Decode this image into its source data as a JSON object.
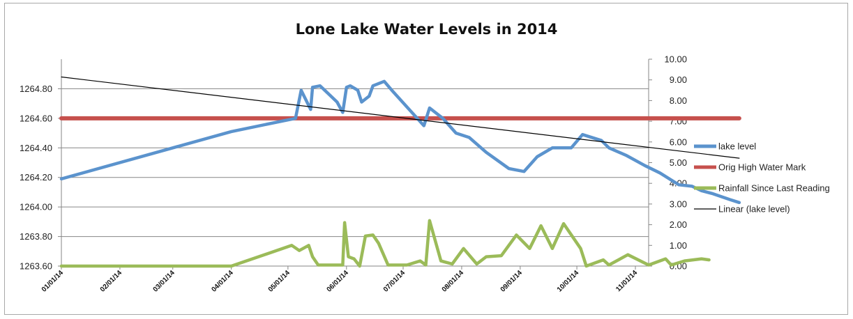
{
  "chart_data": {
    "type": "line",
    "title": "Lone Lake Water Levels in 2014",
    "x_tick_labels": [
      "01/01/14",
      "02/01/14",
      "03/01/14",
      "04/01/14",
      "05/01/14",
      "06/01/14",
      "07/01/14",
      "08/01/14",
      "09/01/14",
      "10/01/14",
      "11/01/14"
    ],
    "y_left": {
      "range": [
        1263.6,
        1265.0
      ],
      "ticks": [
        "1263.60",
        "1263.80",
        "1264.00",
        "1264.20",
        "1264.40",
        "1264.60",
        "1264.80"
      ]
    },
    "y_right": {
      "range": [
        0,
        10
      ],
      "ticks": [
        "0.00",
        "1.00",
        "2.00",
        "3.00",
        "4.00",
        "5.00",
        "6.00",
        "7.00",
        "8.00",
        "9.00",
        "10.00"
      ]
    },
    "grid": "horizontal",
    "legend_position": "right",
    "colors": {
      "lake": "#5b93cd",
      "highwater": "#c6504d",
      "rain": "#9bbb59",
      "trend": "#000000",
      "grid": "#868686"
    },
    "series": [
      {
        "name": "lake level",
        "axis": "left",
        "points": [
          [
            "2014-01-01",
            1264.19
          ],
          [
            "2014-03-01",
            1264.4
          ],
          [
            "2014-04-01",
            1264.51
          ],
          [
            "2014-05-05",
            1264.6
          ],
          [
            "2014-05-08",
            1264.79
          ],
          [
            "2014-05-13",
            1264.66
          ],
          [
            "2014-05-14",
            1264.81
          ],
          [
            "2014-05-18",
            1264.82
          ],
          [
            "2014-05-27",
            1264.71
          ],
          [
            "2014-05-30",
            1264.64
          ],
          [
            "2014-06-01",
            1264.81
          ],
          [
            "2014-06-03",
            1264.82
          ],
          [
            "2014-06-07",
            1264.79
          ],
          [
            "2014-06-09",
            1264.71
          ],
          [
            "2014-06-13",
            1264.75
          ],
          [
            "2014-06-15",
            1264.82
          ],
          [
            "2014-06-21",
            1264.85
          ],
          [
            "2014-06-25",
            1264.79
          ],
          [
            "2014-07-12",
            1264.55
          ],
          [
            "2014-07-15",
            1264.67
          ],
          [
            "2014-07-22",
            1264.6
          ],
          [
            "2014-07-29",
            1264.5
          ],
          [
            "2014-08-05",
            1264.47
          ],
          [
            "2014-08-14",
            1264.37
          ],
          [
            "2014-08-26",
            1264.26
          ],
          [
            "2014-09-03",
            1264.24
          ],
          [
            "2014-09-10",
            1264.34
          ],
          [
            "2014-09-18",
            1264.4
          ],
          [
            "2014-09-28",
            1264.4
          ],
          [
            "2014-10-04",
            1264.49
          ],
          [
            "2014-10-14",
            1264.45
          ],
          [
            "2014-10-18",
            1264.4
          ],
          [
            "2014-10-27",
            1264.35
          ],
          [
            "2014-11-06",
            1264.28
          ],
          [
            "2014-11-14",
            1264.23
          ],
          [
            "2014-11-24",
            1264.15
          ],
          [
            "2014-12-01",
            1264.14
          ],
          [
            "2014-12-06",
            1264.11
          ],
          [
            "2014-12-12",
            1264.09
          ],
          [
            "2014-12-21",
            1264.05
          ],
          [
            "2014-12-26",
            1264.03
          ]
        ]
      },
      {
        "name": "Orig High Water Mark",
        "axis": "left",
        "points": [
          [
            "2014-01-01",
            1264.6
          ],
          [
            "2014-12-26",
            1264.6
          ]
        ]
      },
      {
        "name": "Rainfall Since Last Reading",
        "axis": "right",
        "points": [
          [
            "2014-01-01",
            0
          ],
          [
            "2014-04-01",
            0
          ],
          [
            "2014-05-03",
            1.0
          ],
          [
            "2014-05-07",
            0.75
          ],
          [
            "2014-05-12",
            1.0
          ],
          [
            "2014-05-14",
            0.45
          ],
          [
            "2014-05-17",
            0.05
          ],
          [
            "2014-05-22",
            0.05
          ],
          [
            "2014-05-30",
            0.05
          ],
          [
            "2014-05-31",
            2.1
          ],
          [
            "2014-06-02",
            0.45
          ],
          [
            "2014-06-05",
            0.35
          ],
          [
            "2014-06-08",
            0
          ],
          [
            "2014-06-11",
            1.45
          ],
          [
            "2014-06-15",
            1.5
          ],
          [
            "2014-06-18",
            1.1
          ],
          [
            "2014-06-23",
            0.05
          ],
          [
            "2014-07-03",
            0.05
          ],
          [
            "2014-07-10",
            0.25
          ],
          [
            "2014-07-13",
            0.05
          ],
          [
            "2014-07-15",
            2.2
          ],
          [
            "2014-07-21",
            0.25
          ],
          [
            "2014-07-27",
            0.1
          ],
          [
            "2014-08-02",
            0.85
          ],
          [
            "2014-08-09",
            0.1
          ],
          [
            "2014-08-14",
            0.45
          ],
          [
            "2014-08-22",
            0.5
          ],
          [
            "2014-08-30",
            1.5
          ],
          [
            "2014-09-06",
            0.85
          ],
          [
            "2014-09-12",
            1.95
          ],
          [
            "2014-09-18",
            0.85
          ],
          [
            "2014-09-24",
            2.05
          ],
          [
            "2014-10-03",
            0.85
          ],
          [
            "2014-10-06",
            0
          ],
          [
            "2014-10-15",
            0.3
          ],
          [
            "2014-10-18",
            0.05
          ],
          [
            "2014-10-28",
            0.55
          ],
          [
            "2014-11-08",
            0.05
          ],
          [
            "2014-11-17",
            0.35
          ],
          [
            "2014-11-20",
            0.05
          ],
          [
            "2014-11-27",
            0.25
          ],
          [
            "2014-12-06",
            0.35
          ],
          [
            "2014-12-10",
            0.3
          ]
        ]
      },
      {
        "name": "Linear (lake level)",
        "axis": "left",
        "style": "trendline",
        "points": [
          [
            "2014-01-01",
            1264.88
          ],
          [
            "2014-12-26",
            1264.33
          ]
        ]
      }
    ]
  }
}
